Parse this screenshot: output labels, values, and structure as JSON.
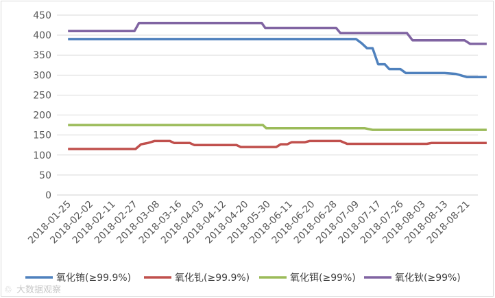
{
  "chart_data": {
    "type": "line",
    "title": "",
    "xlabel": "",
    "ylabel": "",
    "ylim": [
      0,
      450
    ],
    "yticks": [
      0,
      50,
      100,
      150,
      200,
      250,
      300,
      350,
      400,
      450
    ],
    "grid": true,
    "legend_position": "bottom",
    "x_labels": [
      "2018-01-25",
      "2018-02-02",
      "2018-02-11",
      "2018-02-27",
      "2018-03-08",
      "2018-03-16",
      "2018-04-03",
      "2018-04-12",
      "2018-04-20",
      "2018-05-30",
      "2018-06-11",
      "2018-06-20",
      "2018-06-28",
      "2018-07-09",
      "2018-07-17",
      "2018-07-26",
      "2018-08-03",
      "2018-08-13",
      "2018-08-21"
    ],
    "series": [
      {
        "name": "氧化铕(≥99.9%)",
        "color": "#4f81bd",
        "points": [
          [
            0,
            390
          ],
          [
            13,
            390
          ],
          [
            13.25,
            380
          ],
          [
            13.5,
            367
          ],
          [
            13.75,
            367
          ],
          [
            14,
            327
          ],
          [
            14.3,
            327
          ],
          [
            14.5,
            315
          ],
          [
            15,
            315
          ],
          [
            15.25,
            305
          ],
          [
            17,
            305
          ],
          [
            17.5,
            303
          ],
          [
            18,
            295
          ],
          [
            18.9,
            295
          ]
        ]
      },
      {
        "name": "氧化钆(≥99.9%)",
        "color": "#c0504d",
        "points": [
          [
            0,
            115
          ],
          [
            3.05,
            115
          ],
          [
            3.3,
            127
          ],
          [
            3.6,
            130
          ],
          [
            3.9,
            135
          ],
          [
            4.6,
            135
          ],
          [
            4.8,
            130
          ],
          [
            5.5,
            130
          ],
          [
            5.7,
            125
          ],
          [
            7.6,
            125
          ],
          [
            7.8,
            120
          ],
          [
            9.4,
            120
          ],
          [
            9.6,
            127
          ],
          [
            9.9,
            127
          ],
          [
            10.1,
            132
          ],
          [
            10.7,
            132
          ],
          [
            10.9,
            135
          ],
          [
            12.3,
            135
          ],
          [
            12.6,
            128
          ],
          [
            16.2,
            128
          ],
          [
            16.4,
            130
          ],
          [
            18.9,
            130
          ]
        ]
      },
      {
        "name": "氧化铒(≥99%)",
        "color": "#9bbb59",
        "points": [
          [
            0,
            175
          ],
          [
            8.8,
            175
          ],
          [
            8.95,
            167
          ],
          [
            13.4,
            167
          ],
          [
            13.75,
            163
          ],
          [
            18.9,
            163
          ]
        ]
      },
      {
        "name": "氧化钬(≥99%)",
        "color": "#8064a2",
        "points": [
          [
            0,
            410
          ],
          [
            3.0,
            410
          ],
          [
            3.2,
            430
          ],
          [
            8.75,
            430
          ],
          [
            8.9,
            418
          ],
          [
            12.1,
            418
          ],
          [
            12.3,
            405
          ],
          [
            15.3,
            405
          ],
          [
            15.55,
            387
          ],
          [
            17.9,
            387
          ],
          [
            18.15,
            378
          ],
          [
            18.9,
            378
          ]
        ]
      }
    ]
  },
  "watermark": "大数据观察"
}
